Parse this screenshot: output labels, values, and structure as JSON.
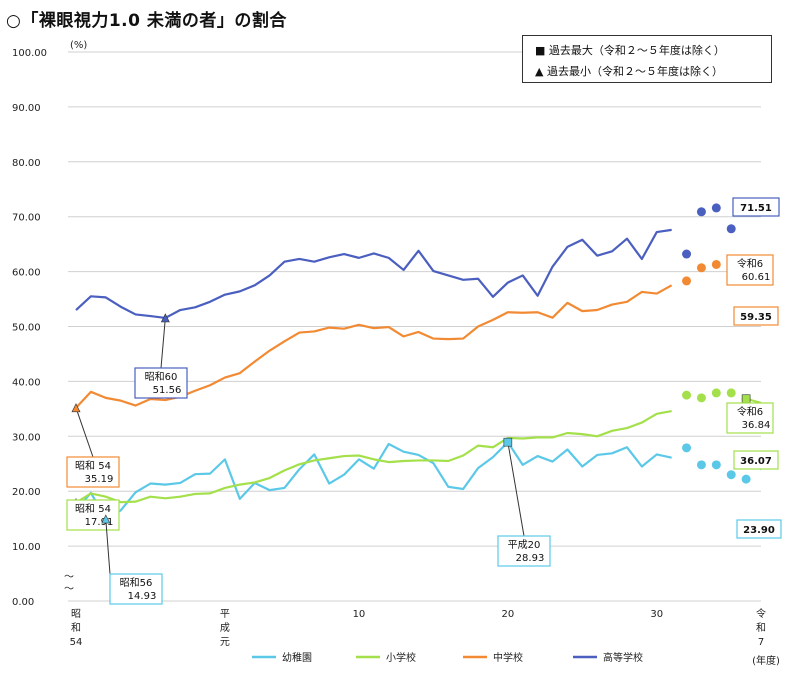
{
  "title": "○「裸眼視力1.0 未満の者」の割合",
  "legend_top": {
    "max_label": "■ 過去最大（令和２～５年度は除く）",
    "min_label": "▲ 過去最小（令和２～５年度は除く）"
  },
  "chart_data": {
    "type": "line",
    "unit_label": "(%)",
    "x_unit_label": "(年度)",
    "ylim": [
      0,
      100
    ],
    "yticks": [
      "0.00",
      "10.00",
      "20.00",
      "30.00",
      "40.00",
      "50.00",
      "60.00",
      "70.00",
      "80.00",
      "90.00",
      "100.00"
    ],
    "xtick_labels": [
      {
        "x": 0,
        "text": "昭\n和\n54"
      },
      {
        "x": 10,
        "text": "平\n成\n元"
      },
      {
        "x": 19,
        "text": "10"
      },
      {
        "x": 29,
        "text": "20"
      },
      {
        "x": 39,
        "text": "30"
      },
      {
        "x": 46,
        "text": "令\n和\n7"
      }
    ],
    "series": [
      {
        "name": "幼稚園",
        "color": "#5bc8e8",
        "values": [
          16.5,
          19.7,
          14.93,
          16.5,
          19.8,
          21.4,
          21.2,
          21.5,
          23.1,
          23.2,
          25.8,
          18.6,
          21.5,
          20.2,
          20.6,
          24.0,
          26.7,
          21.4,
          23.0,
          25.8,
          24.1,
          28.6,
          27.2,
          26.6,
          25.1,
          20.8,
          20.4,
          24.2,
          26.2,
          28.93,
          24.8,
          26.4,
          25.4,
          27.6,
          24.5,
          26.6,
          26.9,
          28.0,
          24.5,
          26.7,
          26.1
        ],
        "dots": [
          [
            41,
            27.9
          ],
          [
            42,
            24.8
          ],
          [
            43,
            24.8
          ],
          [
            44,
            23.0
          ],
          [
            45,
            22.2
          ]
        ],
        "tail": [
          [
            45.5,
            26.5
          ],
          [
            46,
            23.9
          ]
        ]
      },
      {
        "name": "小学校",
        "color": "#a3e04a",
        "values": [
          17.91,
          19.6,
          19.0,
          18.0,
          18.1,
          19.0,
          18.7,
          19.0,
          19.5,
          19.6,
          20.6,
          21.2,
          21.6,
          22.4,
          23.8,
          24.9,
          25.6,
          26.0,
          26.4,
          26.5,
          25.8,
          25.3,
          25.5,
          25.6,
          25.6,
          25.5,
          26.5,
          28.3,
          28.0,
          29.7,
          29.6,
          29.8,
          29.8,
          30.6,
          30.4,
          30.0,
          31.0,
          31.5,
          32.5,
          34.1,
          34.6
        ],
        "dots": [
          [
            41,
            37.5
          ],
          [
            42,
            37.0
          ],
          [
            43,
            37.9
          ],
          [
            44,
            37.9
          ],
          [
            45,
            36.84
          ]
        ],
        "tail": [
          [
            45,
            36.84
          ],
          [
            46,
            36.07
          ]
        ]
      },
      {
        "name": "中学校",
        "color": "#f28a33",
        "values": [
          35.19,
          38.1,
          37.0,
          36.5,
          35.6,
          36.8,
          36.6,
          37.2,
          38.3,
          39.3,
          40.7,
          41.5,
          43.6,
          45.6,
          47.3,
          48.9,
          49.1,
          49.8,
          49.6,
          50.3,
          49.7,
          49.9,
          48.2,
          49.0,
          47.8,
          47.7,
          47.8,
          50.0,
          51.2,
          52.6,
          52.5,
          52.6,
          51.6,
          54.3,
          52.8,
          53.0,
          54.0,
          54.5,
          56.3,
          56.0,
          57.5
        ],
        "dots": [
          [
            41,
            58.3
          ],
          [
            42,
            60.7
          ],
          [
            43,
            61.3
          ],
          [
            44,
            61.0
          ],
          [
            45,
            60.61
          ]
        ],
        "tail": [
          [
            45,
            60.61
          ],
          [
            46,
            59.35
          ]
        ]
      },
      {
        "name": "高等学校",
        "color": "#4a5fbf",
        "values": [
          53.0,
          55.5,
          55.3,
          53.6,
          52.2,
          51.9,
          51.56,
          53.0,
          53.5,
          54.5,
          55.8,
          56.4,
          57.5,
          59.3,
          61.8,
          62.3,
          61.8,
          62.6,
          63.2,
          62.5,
          63.3,
          62.5,
          60.3,
          63.8,
          60.1,
          59.3,
          58.5,
          58.7,
          55.4,
          58.0,
          59.3,
          55.6,
          60.9,
          64.5,
          65.8,
          62.9,
          63.7,
          66.0,
          62.3,
          67.2,
          67.6
        ],
        "dots": [
          [
            41,
            63.2
          ],
          [
            42,
            70.9
          ],
          [
            43,
            71.6
          ],
          [
            44,
            67.8
          ]
        ],
        "tail": [
          [
            45,
            71.0
          ],
          [
            46,
            71.51
          ]
        ]
      }
    ],
    "callouts": [
      {
        "x": 6,
        "y": 51.56,
        "label_top": "昭和60",
        "label_bottom": "51.56",
        "series": 3,
        "kind": "min"
      },
      {
        "x": 0,
        "y": 35.19,
        "label_top": "昭和 54",
        "label_bottom": "35.19",
        "series": 2,
        "kind": "min"
      },
      {
        "x": 0,
        "y": 17.91,
        "label_top": "昭和 54",
        "label_bottom": "17.91",
        "series": 1,
        "kind": "min"
      },
      {
        "x": 2,
        "y": 14.93,
        "label_top": "昭和56",
        "label_bottom": "14.93",
        "series": 0,
        "kind": "min"
      },
      {
        "x": 29,
        "y": 28.93,
        "label_top": "平成20",
        "label_bottom": "28.93",
        "series": 0,
        "kind": "max"
      },
      {
        "x": 46,
        "y": 71.51,
        "label_top": "",
        "label_bottom": "71.51",
        "series": 3,
        "kind": "max"
      },
      {
        "x": 45,
        "y": 60.61,
        "label_top": "令和6",
        "label_bottom": "60.61",
        "series": 2,
        "kind": "max"
      },
      {
        "x": 45,
        "y": 36.84,
        "label_top": "令和6",
        "label_bottom": "36.84",
        "series": 1,
        "kind": "max"
      }
    ],
    "end_labels": [
      {
        "series": 3,
        "value": "71.51"
      },
      {
        "series": 2,
        "value": "59.35"
      },
      {
        "series": 1,
        "value": "36.07"
      },
      {
        "series": 0,
        "value": "23.90"
      }
    ]
  }
}
